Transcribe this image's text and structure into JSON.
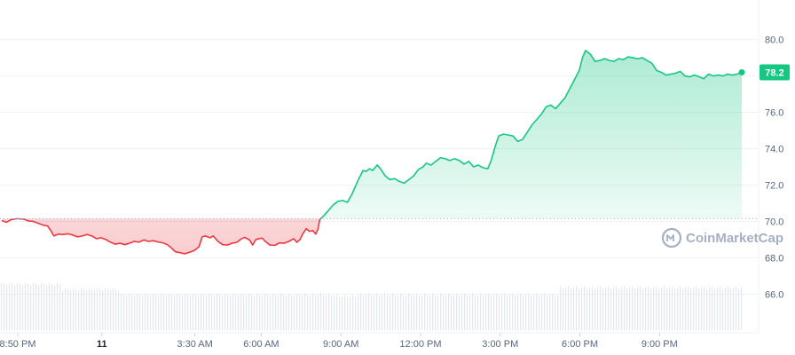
{
  "chart_data": {
    "type": "area",
    "ylim": [
      64.8,
      81.2
    ],
    "yticks": [
      "80.0",
      "78.0",
      "76.0",
      "74.0",
      "72.0",
      "70.0",
      "68.0",
      "66.0"
    ],
    "ytick_values": [
      80,
      78,
      76,
      74,
      72,
      70,
      68,
      66
    ],
    "xticks": [
      {
        "label": "8:50 PM",
        "t": 0
      },
      {
        "label": "11",
        "t": 3.17,
        "bold": true
      },
      {
        "label": "3:30 AM",
        "t": 6.67
      },
      {
        "label": "6:00 AM",
        "t": 9.17
      },
      {
        "label": "9:00 AM",
        "t": 12.17
      },
      {
        "label": "12:00 PM",
        "t": 15.17
      },
      {
        "label": "3:00 PM",
        "t": 18.17
      },
      {
        "label": "6:00 PM",
        "t": 21.17
      },
      {
        "label": "9:00 PM",
        "t": 24.17
      }
    ],
    "t_range": [
      0,
      27.0
    ],
    "reference_value": 70.15,
    "current_value_label": "78.2",
    "current_value": 78.2,
    "colors": {
      "up": "#16c784",
      "down": "#ea3943",
      "badge": "#16c784"
    },
    "watermark": "CoinMarketCap",
    "series": [
      {
        "values": [
          [
            0.0,
            70.05
          ],
          [
            0.3,
            69.95
          ],
          [
            0.6,
            70.1
          ],
          [
            1.0,
            70.15
          ],
          [
            1.4,
            70.12
          ],
          [
            1.7,
            70.02
          ],
          [
            2.0,
            70.0
          ],
          [
            2.3,
            69.9
          ],
          [
            2.6,
            69.8
          ],
          [
            2.9,
            69.75
          ],
          [
            3.1,
            69.5
          ],
          [
            3.3,
            69.2
          ],
          [
            3.6,
            69.3
          ],
          [
            3.9,
            69.28
          ],
          [
            4.2,
            69.32
          ],
          [
            4.5,
            69.25
          ],
          [
            4.8,
            69.15
          ],
          [
            5.1,
            69.2
          ],
          [
            5.4,
            69.28
          ],
          [
            5.7,
            69.2
          ],
          [
            6.0,
            69.05
          ],
          [
            6.3,
            69.1
          ],
          [
            6.6,
            69.0
          ],
          [
            6.9,
            68.85
          ],
          [
            7.2,
            68.75
          ],
          [
            7.5,
            68.8
          ],
          [
            7.8,
            68.72
          ],
          [
            8.1,
            68.8
          ],
          [
            8.4,
            68.9
          ],
          [
            8.7,
            68.86
          ],
          [
            9.0,
            68.98
          ],
          [
            9.3,
            68.9
          ],
          [
            9.6,
            68.94
          ],
          [
            9.9,
            68.87
          ],
          [
            10.2,
            68.82
          ],
          [
            10.5,
            68.72
          ],
          [
            10.8,
            68.5
          ],
          [
            11.0,
            68.33
          ],
          [
            11.3,
            68.28
          ],
          [
            11.6,
            68.22
          ],
          [
            11.9,
            68.3
          ],
          [
            12.2,
            68.4
          ],
          [
            12.5,
            68.6
          ],
          [
            12.7,
            69.15
          ],
          [
            12.9,
            69.2
          ],
          [
            13.2,
            69.1
          ],
          [
            13.4,
            69.2
          ],
          [
            13.7,
            68.9
          ],
          [
            14.0,
            68.72
          ],
          [
            14.3,
            68.7
          ],
          [
            14.6,
            68.8
          ],
          [
            14.9,
            68.85
          ],
          [
            15.2,
            69.05
          ],
          [
            15.4,
            69.12
          ],
          [
            15.7,
            68.98
          ],
          [
            15.9,
            68.7
          ],
          [
            16.1,
            69.0
          ],
          [
            16.3,
            69.05
          ],
          [
            16.5,
            69.08
          ],
          [
            16.7,
            68.9
          ],
          [
            17.0,
            68.7
          ],
          [
            17.3,
            68.68
          ],
          [
            17.6,
            68.82
          ],
          [
            17.9,
            68.8
          ],
          [
            18.2,
            68.9
          ],
          [
            18.5,
            69.05
          ],
          [
            18.7,
            68.85
          ],
          [
            18.9,
            69.0
          ],
          [
            19.1,
            69.35
          ],
          [
            19.3,
            69.6
          ],
          [
            19.5,
            69.45
          ],
          [
            19.7,
            69.5
          ],
          [
            19.9,
            69.3
          ],
          [
            20.05,
            69.6
          ],
          [
            20.15,
            70.1
          ],
          [
            20.4,
            70.3
          ],
          [
            20.7,
            70.6
          ],
          [
            21.0,
            70.9
          ],
          [
            21.3,
            71.1
          ],
          [
            21.6,
            71.15
          ],
          [
            21.9,
            71.05
          ],
          [
            22.2,
            71.5
          ],
          [
            22.4,
            71.9
          ],
          [
            22.6,
            72.3
          ],
          [
            22.9,
            72.8
          ],
          [
            23.1,
            72.75
          ],
          [
            23.3,
            72.9
          ],
          [
            23.5,
            72.8
          ],
          [
            23.8,
            73.1
          ],
          [
            24.0,
            72.9
          ],
          [
            24.3,
            72.5
          ],
          [
            24.6,
            72.3
          ],
          [
            24.9,
            72.35
          ],
          [
            25.2,
            72.2
          ],
          [
            25.5,
            72.1
          ],
          [
            25.8,
            72.3
          ],
          [
            26.1,
            72.5
          ],
          [
            26.4,
            72.85
          ],
          [
            26.7,
            73.0
          ],
          [
            26.9,
            73.2
          ],
          [
            27.2,
            73.1
          ],
          [
            27.5,
            73.3
          ],
          [
            27.8,
            73.5
          ],
          [
            28.1,
            73.45
          ],
          [
            28.4,
            73.35
          ],
          [
            28.7,
            73.45
          ],
          [
            29.0,
            73.35
          ],
          [
            29.3,
            73.15
          ],
          [
            29.6,
            73.3
          ],
          [
            29.9,
            73.0
          ],
          [
            30.2,
            73.1
          ],
          [
            30.5,
            72.95
          ],
          [
            30.8,
            72.9
          ],
          [
            31.0,
            73.3
          ],
          [
            31.3,
            74.2
          ],
          [
            31.5,
            74.7
          ],
          [
            31.8,
            74.8
          ],
          [
            32.1,
            74.75
          ],
          [
            32.4,
            74.7
          ],
          [
            32.7,
            74.4
          ],
          [
            33.0,
            74.5
          ],
          [
            33.3,
            74.9
          ],
          [
            33.6,
            75.3
          ],
          [
            33.9,
            75.6
          ],
          [
            34.2,
            75.9
          ],
          [
            34.5,
            76.3
          ],
          [
            34.8,
            76.4
          ],
          [
            35.1,
            76.2
          ],
          [
            35.4,
            76.5
          ],
          [
            35.7,
            76.8
          ],
          [
            36.0,
            77.3
          ],
          [
            36.3,
            77.8
          ],
          [
            36.6,
            78.3
          ],
          [
            36.8,
            79.0
          ],
          [
            37.0,
            79.4
          ],
          [
            37.3,
            79.2
          ],
          [
            37.6,
            78.8
          ],
          [
            37.9,
            78.85
          ],
          [
            38.2,
            78.95
          ],
          [
            38.5,
            78.85
          ],
          [
            38.8,
            78.8
          ],
          [
            39.1,
            78.95
          ],
          [
            39.4,
            78.9
          ],
          [
            39.7,
            79.05
          ],
          [
            40.0,
            79.0
          ],
          [
            40.3,
            78.95
          ],
          [
            40.6,
            79.0
          ],
          [
            40.9,
            78.85
          ],
          [
            41.2,
            78.7
          ],
          [
            41.5,
            78.3
          ],
          [
            41.8,
            78.2
          ],
          [
            42.1,
            78.05
          ],
          [
            42.4,
            78.1
          ],
          [
            42.7,
            78.15
          ],
          [
            43.0,
            78.25
          ],
          [
            43.3,
            78.0
          ],
          [
            43.6,
            77.95
          ],
          [
            43.9,
            78.05
          ],
          [
            44.2,
            77.95
          ],
          [
            44.5,
            77.85
          ],
          [
            44.8,
            78.1
          ],
          [
            45.1,
            78.0
          ],
          [
            45.4,
            78.05
          ],
          [
            45.7,
            78.0
          ],
          [
            46.0,
            78.1
          ],
          [
            46.3,
            78.05
          ],
          [
            46.6,
            78.1
          ],
          [
            46.9,
            78.2
          ]
        ]
      }
    ],
    "volume_bars": "present"
  }
}
